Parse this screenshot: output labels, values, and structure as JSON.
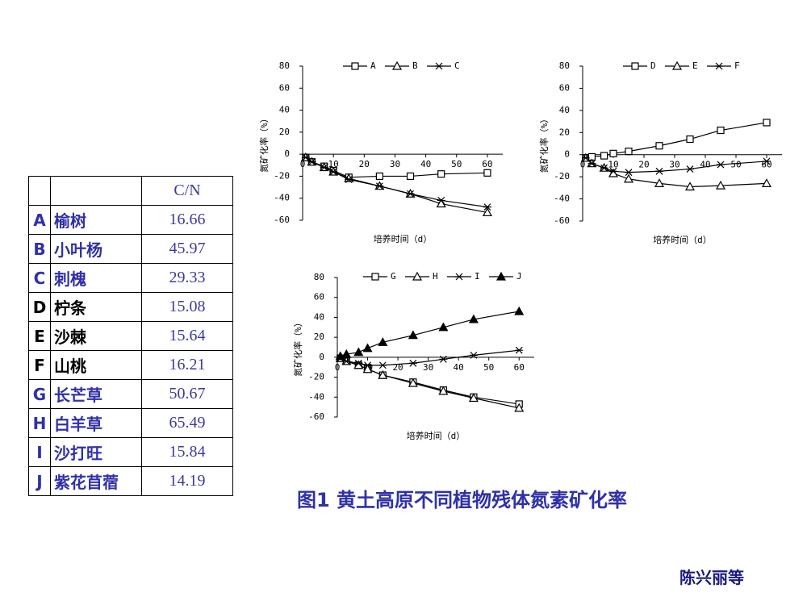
{
  "chart_data": [
    {
      "type": "line",
      "x": [
        1,
        3,
        7,
        10,
        15,
        25,
        35,
        45,
        60
      ],
      "xlim": [
        0,
        65
      ],
      "xticks": [
        0,
        10,
        20,
        30,
        40,
        50,
        60
      ],
      "ylim": [
        -60,
        80
      ],
      "yticks": [
        -60,
        -40,
        -20,
        0,
        20,
        40,
        60,
        80
      ],
      "xlabel": "培养时间（d）",
      "ylabel": "氮矿化率（%）",
      "series": [
        {
          "name": "A",
          "marker": "square",
          "color": "#000",
          "values": [
            -3,
            -7,
            -11,
            -15,
            -21,
            -20,
            -20,
            -18,
            -17
          ]
        },
        {
          "name": "B",
          "marker": "triangle",
          "color": "#000",
          "values": [
            -3,
            -7,
            -12,
            -16,
            -22,
            -29,
            -36,
            -45,
            -53
          ]
        },
        {
          "name": "C",
          "marker": "star",
          "color": "#000",
          "values": [
            -3,
            -7,
            -12,
            -16,
            -23,
            -29,
            -36,
            -42,
            -48
          ]
        }
      ]
    },
    {
      "type": "line",
      "x": [
        1,
        3,
        7,
        10,
        15,
        25,
        35,
        45,
        60
      ],
      "xlim": [
        0,
        65
      ],
      "xticks": [
        0,
        10,
        20,
        30,
        40,
        50,
        60
      ],
      "ylim": [
        -60,
        80
      ],
      "yticks": [
        -60,
        -40,
        -20,
        0,
        20,
        40,
        60,
        80
      ],
      "xlabel": "培养时间（d）",
      "ylabel": "氮矿化率（%）",
      "series": [
        {
          "name": "D",
          "marker": "square",
          "color": "#000",
          "values": [
            -3,
            -2,
            -1,
            1,
            3,
            8,
            14,
            22,
            29
          ]
        },
        {
          "name": "E",
          "marker": "triangle",
          "color": "#000",
          "values": [
            -3,
            -8,
            -12,
            -17,
            -22,
            -26,
            -29,
            -28,
            -26
          ]
        },
        {
          "name": "F",
          "marker": "star",
          "color": "#000",
          "values": [
            -3,
            -8,
            -12,
            -15,
            -16,
            -15,
            -13,
            -9,
            -6
          ]
        }
      ]
    },
    {
      "type": "line",
      "x": [
        1,
        3,
        7,
        10,
        15,
        25,
        35,
        45,
        60
      ],
      "xlim": [
        0,
        65
      ],
      "xticks": [
        0,
        10,
        20,
        30,
        40,
        50,
        60
      ],
      "ylim": [
        -60,
        80
      ],
      "yticks": [
        -60,
        -40,
        -20,
        0,
        20,
        40,
        60,
        80
      ],
      "xlabel": "培养时间（d）",
      "ylabel": "氮矿化率（%）",
      "series": [
        {
          "name": "G",
          "marker": "square",
          "color": "#000",
          "values": [
            -1,
            -4,
            -8,
            -12,
            -18,
            -25,
            -33,
            -40,
            -47
          ]
        },
        {
          "name": "H",
          "marker": "triangle",
          "color": "#000",
          "values": [
            -1,
            -4,
            -8,
            -12,
            -18,
            -26,
            -34,
            -41,
            -51
          ]
        },
        {
          "name": "I",
          "marker": "star",
          "color": "#000",
          "values": [
            -1,
            -4,
            -6,
            -8,
            -8,
            -6,
            -2,
            2,
            7
          ]
        },
        {
          "name": "J",
          "marker": "filled-triangle",
          "color": "#000",
          "values": [
            1,
            3,
            5,
            9,
            15,
            22,
            30,
            38,
            46
          ]
        }
      ]
    }
  ],
  "table": {
    "header": [
      "",
      "",
      "C/N"
    ],
    "rows": [
      [
        "A",
        "榆树",
        "16.66"
      ],
      [
        "B",
        "小叶杨",
        "45.97"
      ],
      [
        "C",
        "刺槐",
        "29.33"
      ],
      [
        "D",
        "柠条",
        "15.08"
      ],
      [
        "E",
        "沙棘",
        "15.64"
      ],
      [
        "F",
        "山桃",
        "16.21"
      ],
      [
        "G",
        "长芒草",
        "50.67"
      ],
      [
        "H",
        "白羊草",
        "65.49"
      ],
      [
        "I",
        "沙打旺",
        "15.84"
      ],
      [
        "J",
        "紫花苜蓿",
        "14.19"
      ]
    ],
    "name_colors": [
      "blue",
      "blue",
      "blue",
      "black",
      "black",
      "black",
      "blue",
      "blue",
      "blue",
      "blue"
    ]
  },
  "caption": "图1 黄土高原不同植物残体氮素矿化率",
  "author": "陈兴丽等"
}
